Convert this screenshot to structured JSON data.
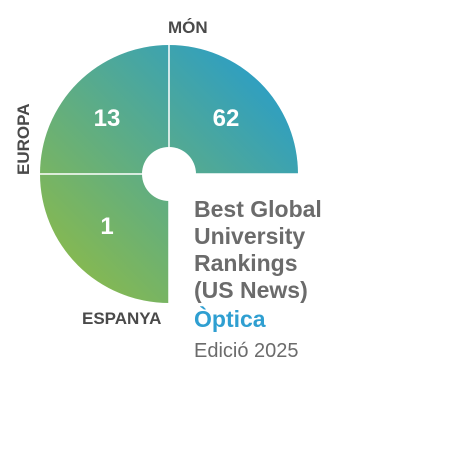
{
  "labels": {
    "world": "MÓN",
    "europe": "EUROPA",
    "spain": "ESPANYA"
  },
  "rankings": {
    "world": "62",
    "europe": "13",
    "spain": "1"
  },
  "title": {
    "line1": "Best Global",
    "line2": "University",
    "line3": "Rankings",
    "line4": "(US News)"
  },
  "subject": "Òptica",
  "edition": "Edició 2025",
  "colors": {
    "blue": "#1f9ad6",
    "green": "#95bd3d",
    "label_gray": "#4a4a4a",
    "title_gray": "#6b6b6b",
    "subject_blue": "#2f9fd1"
  }
}
